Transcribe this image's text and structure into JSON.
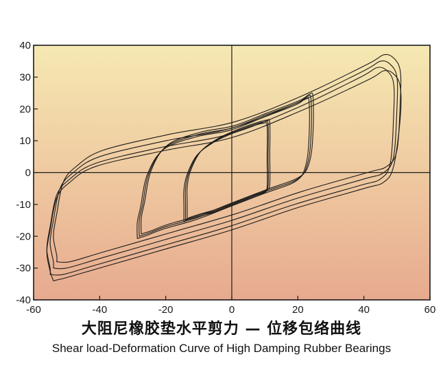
{
  "chart_data": {
    "type": "line",
    "title": "",
    "caption_cn": "大阻尼橡胶垫水平剪力 — 位移包络曲线",
    "caption_en": "Shear load-Deformation Curve of High Damping Rubber Bearings",
    "xlabel": "",
    "ylabel": "",
    "xlim": [
      -60,
      60
    ],
    "ylim": [
      -40,
      40
    ],
    "x_ticks": [
      -60,
      -40,
      -20,
      0,
      20,
      40,
      60
    ],
    "y_ticks": [
      -40,
      -30,
      -20,
      -10,
      0,
      10,
      20,
      30,
      40
    ],
    "grid": false,
    "legend": "none",
    "background_gradient": [
      "#f6e9b2",
      "#e7aa8f"
    ],
    "line_color": "#1a1a1a",
    "series": [
      {
        "x": [
          -14,
          -13,
          -10,
          -5,
          0,
          5,
          10,
          11,
          11,
          11,
          10,
          5,
          0,
          -5,
          -10,
          -13,
          -14,
          -14,
          -14
        ],
        "y": [
          -15,
          -14.5,
          -13.5,
          -12,
          -10,
          -8,
          -6,
          -4,
          5,
          15,
          16,
          14.5,
          12.5,
          10,
          6,
          0,
          -5,
          -10,
          -15
        ]
      },
      {
        "x": [
          -14.5,
          -13.5,
          -10.5,
          -5.5,
          -0.5,
          4.5,
          9.5,
          10.7,
          10.7,
          10.7,
          9.5,
          4.5,
          -0.5,
          -5.5,
          -10.5,
          -13.5,
          -14.5,
          -14.5,
          -14.5
        ],
        "y": [
          -15.5,
          -15,
          -14,
          -12.5,
          -10.5,
          -8.5,
          -6.5,
          -4.5,
          4.5,
          14.5,
          15.5,
          14,
          12,
          9.5,
          5.5,
          -0.5,
          -5.5,
          -10.5,
          -15.5
        ]
      },
      {
        "x": [
          -13.5,
          -12.5,
          -9.5,
          -4.5,
          0.5,
          5.5,
          10.5,
          11.5,
          11.5,
          11.5,
          10.5,
          5.5,
          0.5,
          -4.5,
          -9.5,
          -12.5,
          -13.5,
          -13.5,
          -13.5
        ],
        "y": [
          -14.5,
          -14,
          -13,
          -11.5,
          -9.5,
          -7.5,
          -5.5,
          -3.5,
          5.5,
          15.5,
          16.5,
          15,
          13,
          10.5,
          6.5,
          0.5,
          -4.5,
          -9.5,
          -14.5
        ]
      },
      {
        "x": [
          -28,
          -25,
          -20,
          -10,
          0,
          10,
          20,
          23,
          24,
          24,
          23,
          20,
          10,
          0,
          -10,
          -20,
          -25,
          -27,
          -28,
          -28
        ],
        "y": [
          -20,
          -19,
          -17,
          -14,
          -10,
          -6,
          -2,
          3,
          12,
          23,
          24,
          22,
          18,
          14,
          12,
          8,
          0,
          -10,
          -15,
          -20
        ]
      },
      {
        "x": [
          -28.6,
          -25.6,
          -20.6,
          -10.6,
          -0.6,
          9.4,
          19.4,
          22.4,
          23.4,
          23.4,
          22.4,
          19.4,
          9.4,
          -0.6,
          -10.6,
          -20.6,
          -25.6,
          -27.6,
          -28.6,
          -28.6
        ],
        "y": [
          -20.7,
          -19.7,
          -17.7,
          -14.7,
          -10.7,
          -6.7,
          -2.7,
          2.3,
          11.3,
          22.3,
          23.3,
          21.3,
          17.3,
          13.3,
          11.3,
          7.3,
          -0.7,
          -10.7,
          -15.7,
          -20.7
        ]
      },
      {
        "x": [
          -27.4,
          -24.4,
          -19.4,
          -9.4,
          0.6,
          10.6,
          20.6,
          23.6,
          24.6,
          24.6,
          23.6,
          20.6,
          10.6,
          0.6,
          -9.4,
          -19.4,
          -24.4,
          -26.4,
          -27.4,
          -27.4
        ],
        "y": [
          -19.3,
          -18.3,
          -16.3,
          -13.3,
          -9.3,
          -5.3,
          -1.3,
          3.7,
          12.7,
          23.7,
          24.7,
          22.7,
          18.7,
          14.7,
          12.7,
          8.7,
          0.7,
          -9.3,
          -14.3,
          -19.3
        ]
      },
      {
        "x": [
          -54,
          -50,
          -40,
          -20,
          0,
          20,
          40,
          46,
          49,
          50,
          50,
          48,
          45,
          40,
          20,
          0,
          -20,
          -40,
          -48,
          -52,
          -54,
          -55,
          -54,
          -54
        ],
        "y": [
          -30,
          -30,
          -27,
          -21,
          -15,
          -8,
          -2,
          0,
          5,
          20,
          30,
          34,
          35,
          32,
          22,
          14,
          10,
          5,
          0,
          -5,
          -15,
          -22,
          -28,
          -30
        ]
      },
      {
        "x": [
          -55,
          -51,
          -41,
          -21,
          -1,
          19,
          39,
          45,
          48,
          49,
          49,
          47,
          44,
          39,
          19,
          -1,
          -21,
          -41,
          -49,
          -53,
          -55,
          -56,
          -55,
          -55
        ],
        "y": [
          -32,
          -32,
          -29,
          -23,
          -17,
          -10,
          -4,
          -2,
          3,
          18,
          28,
          32,
          33,
          30,
          20,
          12,
          8,
          3,
          -2,
          -7,
          -17,
          -24,
          -30,
          -32
        ]
      },
      {
        "x": [
          -53,
          -49,
          -39,
          -19,
          1,
          21,
          41,
          47,
          50,
          51,
          51,
          49,
          46,
          41,
          21,
          1,
          -19,
          -39,
          -47,
          -51,
          -53,
          -54,
          -53,
          -53
        ],
        "y": [
          -28,
          -28,
          -25,
          -19,
          -13,
          -6,
          0,
          2,
          7,
          22,
          32,
          36,
          37,
          34,
          24,
          16,
          12,
          7,
          2,
          -3,
          -13,
          -20,
          -26,
          -28
        ]
      },
      {
        "x": [
          -54,
          -50,
          -40,
          -20,
          0,
          20,
          40,
          46,
          49,
          51,
          51,
          49,
          46,
          41,
          20,
          0,
          -20,
          -41,
          -49,
          -53,
          -55,
          -56,
          -55,
          -54
        ],
        "y": [
          -34,
          -33,
          -30,
          -24,
          -18,
          -11,
          -5,
          -3,
          2,
          17,
          27,
          31,
          32,
          29,
          19,
          11,
          7,
          2,
          -3,
          -8,
          -18,
          -25,
          -31,
          -34
        ]
      }
    ]
  }
}
